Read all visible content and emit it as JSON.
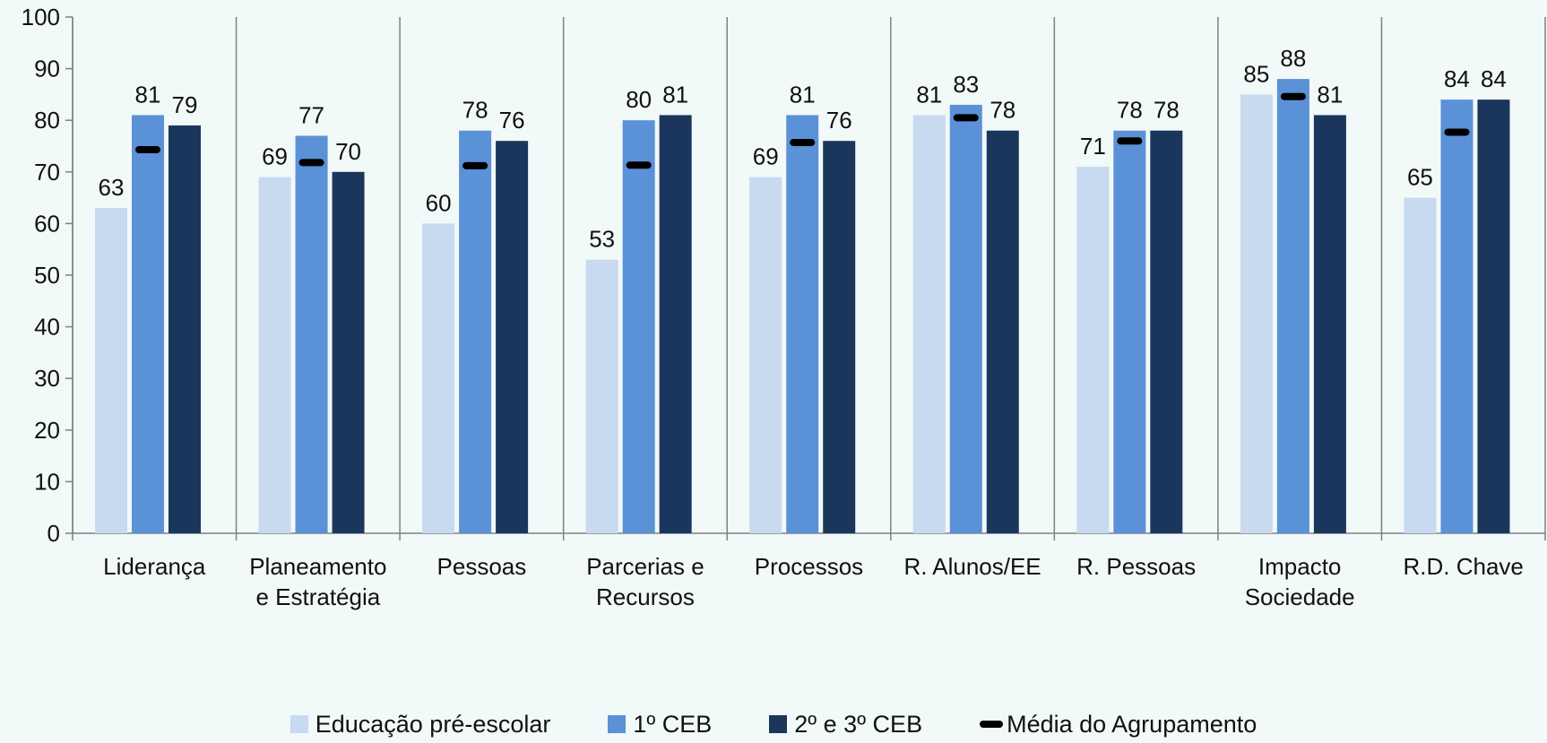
{
  "chart_data": {
    "type": "bar",
    "categories": [
      [
        "Liderança"
      ],
      [
        "Planeamento",
        "e Estratégia"
      ],
      [
        "Pessoas"
      ],
      [
        "Parcerias e",
        "Recursos"
      ],
      [
        "Processos"
      ],
      [
        "R. Alunos/EE"
      ],
      [
        "R. Pessoas"
      ],
      [
        "Impacto",
        "Sociedade"
      ],
      [
        "R.D. Chave"
      ]
    ],
    "series": [
      {
        "name": "Educação pré-escolar",
        "color": "#c8daf0",
        "values": [
          63,
          69,
          60,
          53,
          69,
          81,
          71,
          85,
          65
        ],
        "labels": [
          "63",
          "69",
          "60",
          "53",
          "69",
          "81",
          "71",
          "85",
          "65"
        ]
      },
      {
        "name": "1º CEB",
        "color": "#5b91d6",
        "values": [
          81,
          77,
          78,
          80,
          81,
          83,
          78,
          88,
          84
        ],
        "labels": [
          "81",
          "77",
          "78",
          "80",
          "81",
          "83",
          "78",
          "88",
          "84"
        ]
      },
      {
        "name": "2º e 3º CEB",
        "color": "#1b365d",
        "values": [
          79,
          70,
          76,
          81,
          76,
          78,
          78,
          81,
          84
        ],
        "labels": [
          "79",
          "70",
          "76",
          "81",
          "76",
          "78",
          "78",
          "81",
          "84"
        ]
      }
    ],
    "average": {
      "name": "Média do Agrupamento",
      "color": "#000000",
      "values": [
        74.3,
        71.8,
        71.2,
        71.3,
        75.7,
        80.5,
        76,
        84.6,
        77.7
      ]
    },
    "yticks": [
      "0",
      "10",
      "20",
      "30",
      "40",
      "50",
      "60",
      "70",
      "80",
      "90",
      "100"
    ],
    "ylim": [
      0,
      100
    ],
    "legend_position": "bottom"
  }
}
